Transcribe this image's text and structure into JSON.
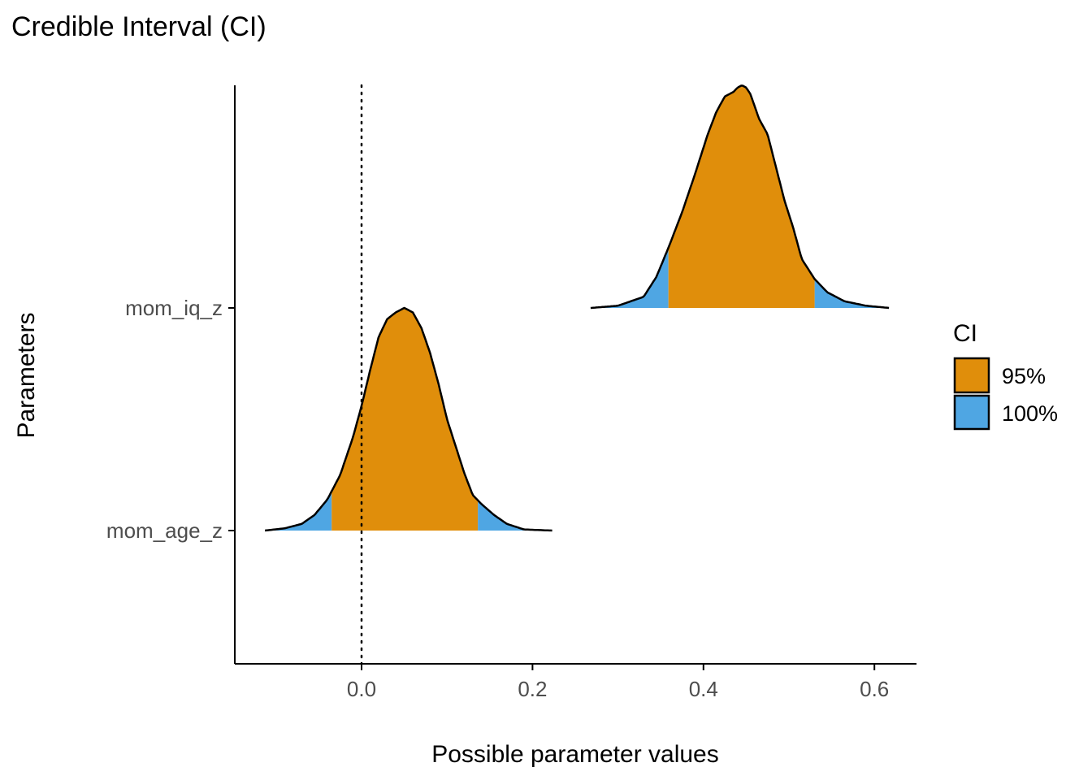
{
  "chart_data": {
    "type": "area",
    "title": "Credible Interval (CI)",
    "xlabel": "Possible parameter values",
    "ylabel": "Parameters",
    "xlim": [
      -0.15,
      0.65
    ],
    "xticks": [
      0.0,
      0.2,
      0.4,
      0.6
    ],
    "xtick_labels": [
      "0.0",
      "0.2",
      "0.4",
      "0.6"
    ],
    "reference_line": 0.0,
    "grid": false,
    "legend": {
      "title": "CI",
      "position": "right",
      "items": [
        {
          "label": "95%",
          "color": "#E08E0B"
        },
        {
          "label": "100%",
          "color": "#4FA6E3"
        }
      ]
    },
    "series": [
      {
        "name": "mom_iq_z",
        "range": [
          0.268,
          0.617
        ],
        "ci95": [
          0.359,
          0.53
        ],
        "density_x": [
          0.268,
          0.3,
          0.33,
          0.345,
          0.36,
          0.375,
          0.39,
          0.405,
          0.415,
          0.425,
          0.435,
          0.44,
          0.445,
          0.45,
          0.455,
          0.465,
          0.475,
          0.485,
          0.495,
          0.505,
          0.515,
          0.53,
          0.545,
          0.565,
          0.59,
          0.617
        ],
        "density_y": [
          0.0,
          0.01,
          0.05,
          0.14,
          0.28,
          0.43,
          0.6,
          0.78,
          0.88,
          0.95,
          0.97,
          0.99,
          1.0,
          0.99,
          0.96,
          0.85,
          0.78,
          0.63,
          0.48,
          0.36,
          0.22,
          0.13,
          0.07,
          0.03,
          0.01,
          0.0
        ]
      },
      {
        "name": "mom_age_z",
        "range": [
          -0.113,
          0.223
        ],
        "ci95": [
          -0.035,
          0.136
        ],
        "density_x": [
          -0.113,
          -0.09,
          -0.07,
          -0.055,
          -0.04,
          -0.025,
          -0.01,
          0.0,
          0.01,
          0.02,
          0.03,
          0.04,
          0.05,
          0.06,
          0.07,
          0.08,
          0.09,
          0.1,
          0.11,
          0.12,
          0.13,
          0.14,
          0.155,
          0.17,
          0.19,
          0.223
        ],
        "density_y": [
          0.0,
          0.01,
          0.03,
          0.07,
          0.14,
          0.25,
          0.42,
          0.56,
          0.72,
          0.87,
          0.95,
          0.98,
          1.0,
          0.98,
          0.91,
          0.8,
          0.66,
          0.5,
          0.38,
          0.26,
          0.16,
          0.12,
          0.07,
          0.03,
          0.005,
          0.0
        ]
      }
    ],
    "categories": [
      "mom_age_z",
      "mom_iq_z"
    ]
  }
}
